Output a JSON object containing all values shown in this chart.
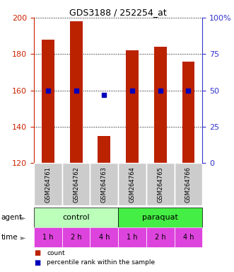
{
  "title": "GDS3188 / 252254_at",
  "categories": [
    "GSM264761",
    "GSM264762",
    "GSM264763",
    "GSM264764",
    "GSM264765",
    "GSM264766"
  ],
  "counts": [
    188,
    198,
    135,
    182,
    184,
    176
  ],
  "percentiles": [
    50,
    50,
    47,
    50,
    50,
    50
  ],
  "ylim_left": [
    120,
    200
  ],
  "ylim_right": [
    0,
    100
  ],
  "yticks_left": [
    120,
    140,
    160,
    180,
    200
  ],
  "yticks_right": [
    0,
    25,
    50,
    75,
    100
  ],
  "bar_color": "#BB2200",
  "marker_color": "#0000BB",
  "bar_width": 0.45,
  "agent_colors": [
    "#BBFFBB",
    "#44EE44"
  ],
  "time_labels": [
    "1 h",
    "2 h",
    "4 h",
    "1 h",
    "2 h",
    "4 h"
  ],
  "time_color": "#DD44DD",
  "left_axis_color": "#CC2200",
  "right_axis_color": "#3333CC",
  "background_label": "#CCCCCC",
  "legend_red_label": "count",
  "legend_blue_label": "percentile rank within the sample"
}
